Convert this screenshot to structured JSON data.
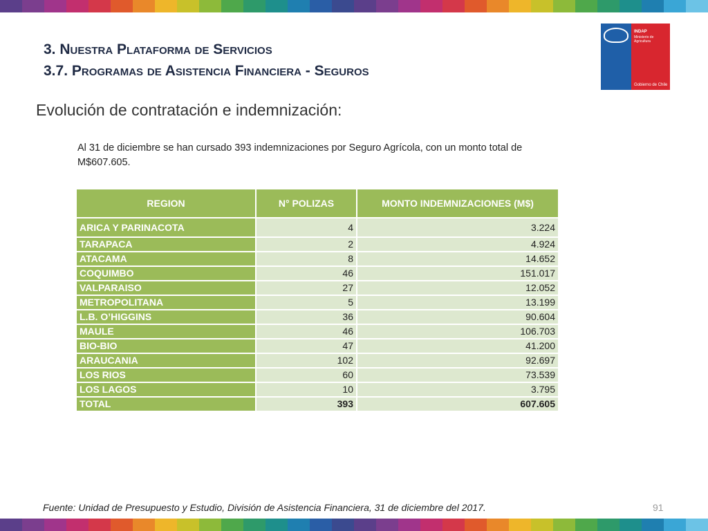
{
  "stripe_colors": [
    "#5b3f8a",
    "#7b3e8e",
    "#a0358b",
    "#c22f6e",
    "#d4384a",
    "#e05a2c",
    "#e9882a",
    "#eeb62a",
    "#c8c12a",
    "#8dba3a",
    "#4fa84b",
    "#2e9a6a",
    "#1e8f8c",
    "#1f7fb0",
    "#2a5ea6",
    "#3b4a8f",
    "#5b3f8a",
    "#7b3e8e",
    "#a0358b",
    "#c22f6e",
    "#d4384a",
    "#e05a2c",
    "#e9882a",
    "#eeb62a",
    "#c8c12a",
    "#8dba3a",
    "#4fa84b",
    "#2e9a6a",
    "#1e8f8c",
    "#1f7fb0",
    "#3aa6d6",
    "#6cc3e6"
  ],
  "title": {
    "line1": "3. Nuestra Plataforma de Servicios",
    "line2": "3.7. Programas de Asistencia Financiera - Seguros"
  },
  "logo": {
    "org": "INDAP",
    "ministry": "Ministerio de Agricultura",
    "government": "Gobierno de Chile"
  },
  "subtitle": "Evolución de contratación e indemnización:",
  "intro": "Al 31 de diciembre se han cursado 393 indemnizaciones por Seguro Agrícola, con un monto total de M$607.605.",
  "table": {
    "headers": [
      "REGION",
      "N° POLIZAS",
      "MONTO INDEMNIZACIONES (M$)"
    ],
    "rows": [
      {
        "region": "ARICA Y PARINACOTA",
        "polizas": "4",
        "monto": "3.224"
      },
      {
        "region": "TARAPACA",
        "polizas": "2",
        "monto": "4.924"
      },
      {
        "region": "ATACAMA",
        "polizas": "8",
        "monto": "14.652"
      },
      {
        "region": "COQUIMBO",
        "polizas": "46",
        "monto": "151.017"
      },
      {
        "region": "VALPARAISO",
        "polizas": "27",
        "monto": "12.052"
      },
      {
        "region": "METROPOLITANA",
        "polizas": "5",
        "monto": "13.199"
      },
      {
        "region": "L.B. O’HIGGINS",
        "polizas": "36",
        "monto": "90.604"
      },
      {
        "region": "MAULE",
        "polizas": "46",
        "monto": "106.703"
      },
      {
        "region": "BIO-BIO",
        "polizas": "47",
        "monto": "41.200"
      },
      {
        "region": "ARAUCANIA",
        "polizas": "102",
        "monto": "92.697"
      },
      {
        "region": "LOS RIOS",
        "polizas": "60",
        "monto": "73.539"
      },
      {
        "region": "LOS LAGOS",
        "polizas": "10",
        "monto": "3.795"
      }
    ],
    "total": {
      "region": "TOTAL",
      "polizas": "393",
      "monto": "607.605"
    }
  },
  "source": "Fuente: Unidad de Presupuesto y Estudio, División de Asistencia Financiera, 31 de diciembre del 2017.",
  "page_number": "91"
}
